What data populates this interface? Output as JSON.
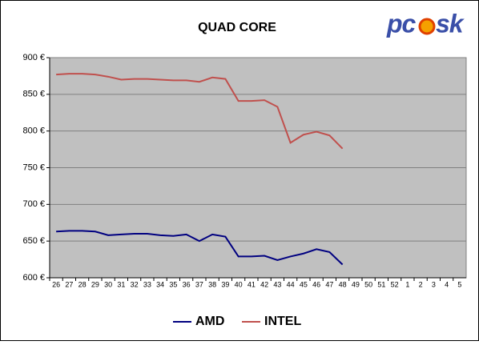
{
  "chart_data": {
    "type": "line",
    "title": "QUAD CORE",
    "categories": [
      "26",
      "27",
      "28",
      "29",
      "30",
      "31",
      "32",
      "33",
      "34",
      "35",
      "36",
      "37",
      "38",
      "39",
      "40",
      "41",
      "42",
      "43",
      "44",
      "45",
      "46",
      "47",
      "48",
      "49",
      "50",
      "51",
      "52",
      "1",
      "2",
      "3",
      "4",
      "5"
    ],
    "series": [
      {
        "name": "AMD",
        "color": "#000080",
        "values": [
          663,
          664,
          664,
          663,
          658,
          659,
          660,
          660,
          658,
          657,
          659,
          650,
          659,
          656,
          629,
          629,
          630,
          624,
          629,
          633,
          639,
          635,
          618,
          null,
          null,
          null,
          null,
          null,
          null,
          null,
          null,
          null
        ]
      },
      {
        "name": "INTEL",
        "color": "#c0504d",
        "values": [
          877,
          878,
          878,
          877,
          874,
          870,
          871,
          871,
          870,
          869,
          869,
          867,
          873,
          871,
          841,
          841,
          842,
          833,
          784,
          795,
          799,
          794,
          776,
          null,
          null,
          null,
          null,
          null,
          null,
          null,
          null,
          null
        ]
      }
    ],
    "ylim": [
      600,
      900
    ],
    "yticks": [
      {
        "value": 600,
        "label": "600 €"
      },
      {
        "value": 650,
        "label": "650 €"
      },
      {
        "value": 700,
        "label": "700 €"
      },
      {
        "value": 750,
        "label": "750 €"
      },
      {
        "value": 800,
        "label": "800 €"
      },
      {
        "value": 850,
        "label": "850 €"
      },
      {
        "value": 900,
        "label": "900 €"
      }
    ],
    "grid": true,
    "legend": "bottom"
  },
  "logo": {
    "left": "pc",
    "right": "sk"
  }
}
